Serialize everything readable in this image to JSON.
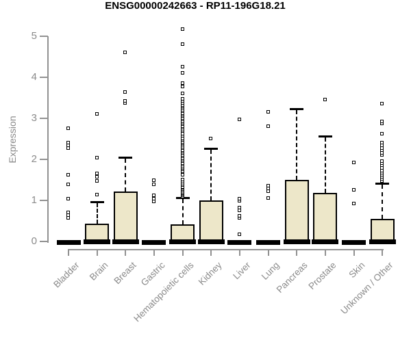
{
  "colors": {
    "box_fill": "#EDE7C9",
    "box_stroke": "#000000",
    "axis_line": "#919191",
    "axis_text": "#8A8A8A",
    "title_text": "#000000"
  },
  "chart_data": {
    "type": "boxplot",
    "title": "ENSG00000242663 - RP11-196G18.21",
    "xlabel": "",
    "ylabel": "Expression",
    "ylim": [
      0,
      5
    ],
    "yticks": [
      "0",
      "1",
      "2",
      "3",
      "4",
      "5"
    ],
    "grid": false,
    "legend": false,
    "categories": [
      "Bladder",
      "Brain",
      "Breast",
      "Gastric",
      "Hematopoietic cells",
      "Kidney",
      "Liver",
      "Lung",
      "Pancreas",
      "Prostate",
      "Skin",
      "Unknown / Other"
    ],
    "boxes": [
      {
        "label": "Bladder",
        "q1": 0,
        "median": 0,
        "q3": 0,
        "whisker_low": 0,
        "whisker_high": 0,
        "outliers": [
          0.58,
          0.65,
          0.72,
          1.05,
          1.4,
          1.64,
          2.28,
          2.35,
          2.42,
          2.77
        ]
      },
      {
        "label": "Brain",
        "q1": 0,
        "median": 0,
        "q3": 0.44,
        "whisker_low": 0,
        "whisker_high": 0.97,
        "outliers": [
          1.15,
          1.49,
          1.58,
          1.67,
          2.05,
          3.12
        ]
      },
      {
        "label": "Breast",
        "q1": 0,
        "median": 0,
        "q3": 1.22,
        "whisker_low": 0,
        "whisker_high": 2.05,
        "outliers": [
          3.38,
          3.44,
          3.65,
          4.62
        ]
      },
      {
        "label": "Gastric",
        "q1": 0,
        "median": 0,
        "q3": 0,
        "whisker_low": 0,
        "whisker_high": 0,
        "outliers": [
          0.98,
          1.05,
          1.13,
          1.4,
          1.5
        ]
      },
      {
        "label": "Hematopoietic cells",
        "q1": 0,
        "median": 0,
        "q3": 0.42,
        "whisker_low": 0,
        "whisker_high": 1.07,
        "outliers": [
          1.1,
          1.13,
          1.16,
          1.19,
          1.22,
          1.25,
          1.28,
          1.31,
          1.34,
          1.38,
          1.42,
          1.47,
          1.52,
          1.63,
          1.72,
          1.76,
          1.8,
          1.84,
          1.88,
          1.92,
          1.96,
          2.0,
          2.04,
          2.08,
          2.12,
          2.16,
          2.2,
          2.24,
          2.28,
          2.32,
          2.36,
          2.4,
          2.44,
          2.48,
          2.52,
          2.58,
          2.63,
          2.7,
          2.74,
          2.78,
          2.82,
          2.86,
          2.9,
          2.94,
          2.98,
          3.02,
          3.06,
          3.1,
          3.14,
          3.18,
          3.22,
          3.26,
          3.3,
          3.34,
          3.38,
          3.43,
          3.49,
          3.61,
          3.78,
          3.86,
          4.11,
          4.27,
          4.82,
          5.18
        ]
      },
      {
        "label": "Kidney",
        "q1": 0,
        "median": 0,
        "q3": 1.0,
        "whisker_low": 0,
        "whisker_high": 2.27,
        "outliers": [
          2.52
        ]
      },
      {
        "label": "Liver",
        "q1": 0,
        "median": 0,
        "q3": 0,
        "whisker_low": 0,
        "whisker_high": 0,
        "outliers": [
          0.19,
          0.58,
          0.64,
          0.76,
          0.84,
          1.0,
          1.05,
          2.99
        ]
      },
      {
        "label": "Lung",
        "q1": 0,
        "median": 0,
        "q3": 0,
        "whisker_low": 0,
        "whisker_high": 0,
        "outliers": [
          1.06,
          1.24,
          1.3,
          1.37,
          2.81,
          3.17
        ]
      },
      {
        "label": "Pancreas",
        "q1": 0,
        "median": 0,
        "q3": 1.5,
        "whisker_low": 0,
        "whisker_high": 3.24,
        "outliers": []
      },
      {
        "label": "Prostate",
        "q1": 0,
        "median": 0,
        "q3": 1.18,
        "whisker_low": 0,
        "whisker_high": 2.56,
        "outliers": [
          3.46
        ]
      },
      {
        "label": "Skin",
        "q1": 0,
        "median": 0,
        "q3": 0,
        "whisker_low": 0,
        "whisker_high": 0,
        "outliers": [
          0.94,
          1.26,
          1.93
        ]
      },
      {
        "label": "Unknown / Other",
        "q1": 0,
        "median": 0,
        "q3": 0.55,
        "whisker_low": 0,
        "whisker_high": 1.42,
        "outliers": [
          1.49,
          1.54,
          1.59,
          1.64,
          1.69,
          1.74,
          1.8,
          1.86,
          1.92,
          1.97,
          2.11,
          2.17,
          2.23,
          2.29,
          2.35,
          2.41,
          2.63,
          2.88,
          2.94,
          3.36
        ]
      }
    ]
  }
}
